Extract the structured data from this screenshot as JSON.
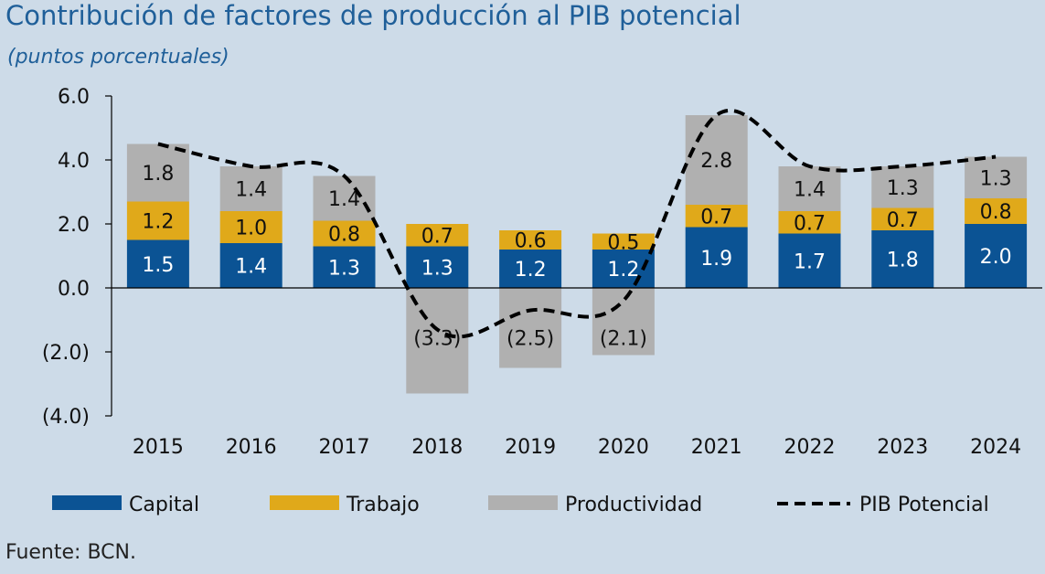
{
  "title": "Contribución de factores de producción al PIB potencial",
  "subtitle": "(puntos porcentuales)",
  "source": "Fuente: BCN.",
  "colors": {
    "capital": "#0b5394",
    "trabajo": "#e0a91a",
    "productividad": "#b0b0b0",
    "pib": "#000000",
    "background": "#cddbe8"
  },
  "chart_data": {
    "type": "bar",
    "stacked": true,
    "categories": [
      "2015",
      "2016",
      "2017",
      "2018",
      "2019",
      "2020",
      "2021",
      "2022",
      "2023",
      "2024"
    ],
    "series": [
      {
        "name": "Capital",
        "values": [
          1.5,
          1.4,
          1.3,
          1.3,
          1.2,
          1.2,
          1.9,
          1.7,
          1.8,
          2.0
        ]
      },
      {
        "name": "Trabajo",
        "values": [
          1.2,
          1.0,
          0.8,
          0.7,
          0.6,
          0.5,
          0.7,
          0.7,
          0.7,
          0.8
        ]
      },
      {
        "name": "Productividad",
        "values": [
          1.8,
          1.4,
          1.4,
          -3.3,
          -2.5,
          -2.1,
          2.8,
          1.4,
          1.3,
          1.3
        ]
      }
    ],
    "line": {
      "name": "PIB Potencial",
      "style": "dashed",
      "values": [
        4.5,
        3.8,
        3.5,
        -1.3,
        -0.7,
        -0.4,
        5.4,
        3.8,
        3.8,
        4.1
      ]
    },
    "data_labels": {
      "Capital": [
        "1.5",
        "1.4",
        "1.3",
        "1.3",
        "1.2",
        "1.2",
        "1.9",
        "1.7",
        "1.8",
        "2.0"
      ],
      "Trabajo": [
        "1.2",
        "1.0",
        "0.8",
        "0.7",
        "0.6",
        "0.5",
        "0.7",
        "0.7",
        "0.7",
        "0.8"
      ],
      "Productividad": [
        "1.8",
        "1.4",
        "1.4",
        "(3.3)",
        "(2.5)",
        "(2.1)",
        "2.8",
        "1.4",
        "1.3",
        "1.3"
      ]
    },
    "ylim": [
      -4.0,
      6.0
    ],
    "yticks": [
      6.0,
      4.0,
      2.0,
      0.0,
      -2.0,
      -4.0
    ],
    "ytick_labels": [
      "6.0",
      "4.0",
      "2.0",
      "0.0",
      "(2.0)",
      "(4.0)"
    ],
    "legend": {
      "position": "bottom",
      "entries": [
        "Capital",
        "Trabajo",
        "Productividad",
        "PIB Potencial"
      ]
    },
    "grid": false
  }
}
